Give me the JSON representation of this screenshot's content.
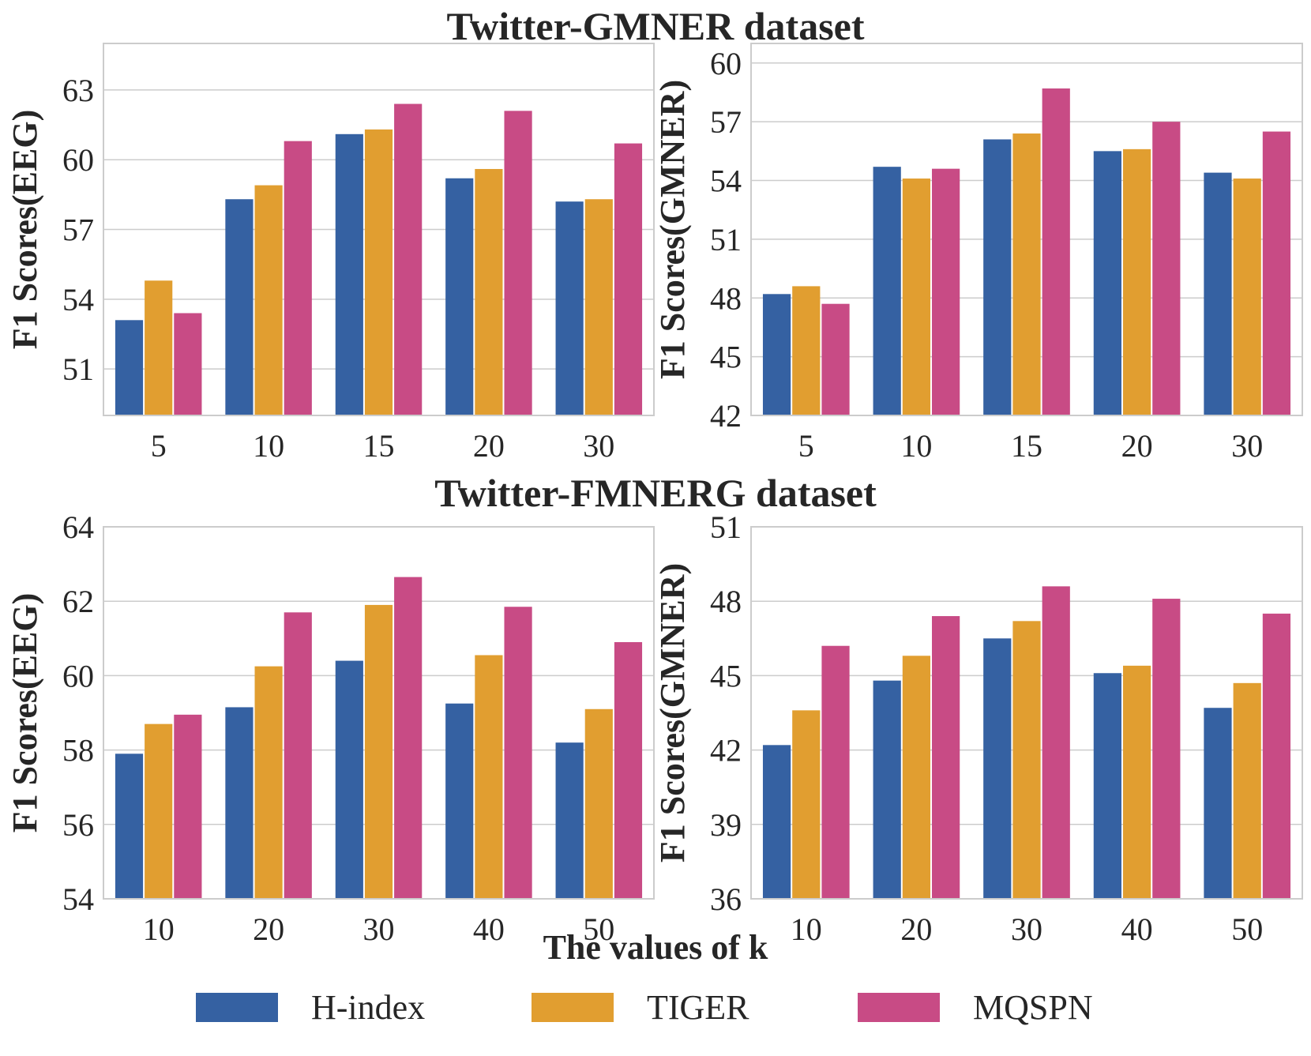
{
  "series_colors": {
    "H-index": "#3561a2",
    "TIGER": "#e19e30",
    "MQSPN": "#c84b85"
  },
  "figure": {
    "row_titles": [
      "Twitter-GMNER dataset",
      "Twitter-FMNERG dataset"
    ],
    "xlabel": "The values of k",
    "legend": [
      "H-index",
      "TIGER",
      "MQSPN"
    ]
  },
  "chart_data": [
    {
      "type": "bar",
      "title": "Twitter-GMNER dataset",
      "ylabel": "F1 Scores(EEG)",
      "categories": [
        "5",
        "10",
        "15",
        "20",
        "30"
      ],
      "ylim": [
        49,
        65
      ],
      "yticks": [
        51,
        54,
        57,
        60,
        63
      ],
      "series": [
        {
          "name": "H-index",
          "values": [
            53.1,
            58.3,
            61.1,
            59.2,
            58.2
          ]
        },
        {
          "name": "TIGER",
          "values": [
            54.8,
            58.9,
            61.3,
            59.6,
            58.3
          ]
        },
        {
          "name": "MQSPN",
          "values": [
            53.4,
            60.8,
            62.4,
            62.1,
            60.7
          ]
        }
      ]
    },
    {
      "type": "bar",
      "title": "",
      "ylabel": "F1 Scores(GMNER)",
      "categories": [
        "5",
        "10",
        "15",
        "20",
        "30"
      ],
      "ylim": [
        42,
        61
      ],
      "yticks": [
        42,
        45,
        48,
        51,
        54,
        57,
        60
      ],
      "series": [
        {
          "name": "H-index",
          "values": [
            48.2,
            54.7,
            56.1,
            55.5,
            54.4
          ]
        },
        {
          "name": "TIGER",
          "values": [
            48.6,
            54.1,
            56.4,
            55.6,
            54.1
          ]
        },
        {
          "name": "MQSPN",
          "values": [
            47.7,
            54.6,
            58.7,
            57.0,
            56.5
          ]
        }
      ]
    },
    {
      "type": "bar",
      "title": "Twitter-FMNERG dataset",
      "ylabel": "F1 Scores(EEG)",
      "categories": [
        "10",
        "20",
        "30",
        "40",
        "50"
      ],
      "ylim": [
        54,
        64
      ],
      "yticks": [
        54,
        56,
        58,
        60,
        62,
        64
      ],
      "series": [
        {
          "name": "H-index",
          "values": [
            57.9,
            59.15,
            60.4,
            59.25,
            58.2
          ]
        },
        {
          "name": "TIGER",
          "values": [
            58.7,
            60.25,
            61.9,
            60.55,
            59.1
          ]
        },
        {
          "name": "MQSPN",
          "values": [
            58.95,
            61.7,
            62.65,
            61.85,
            60.9
          ]
        }
      ]
    },
    {
      "type": "bar",
      "title": "",
      "ylabel": "F1 Scores(GMNER)",
      "categories": [
        "10",
        "20",
        "30",
        "40",
        "50"
      ],
      "ylim": [
        36,
        51
      ],
      "yticks": [
        36,
        39,
        42,
        45,
        48,
        51
      ],
      "series": [
        {
          "name": "H-index",
          "values": [
            42.2,
            44.8,
            46.5,
            45.1,
            43.7
          ]
        },
        {
          "name": "TIGER",
          "values": [
            43.6,
            45.8,
            47.2,
            45.4,
            44.7
          ]
        },
        {
          "name": "MQSPN",
          "values": [
            46.2,
            47.4,
            48.6,
            48.1,
            47.5
          ]
        }
      ]
    }
  ]
}
